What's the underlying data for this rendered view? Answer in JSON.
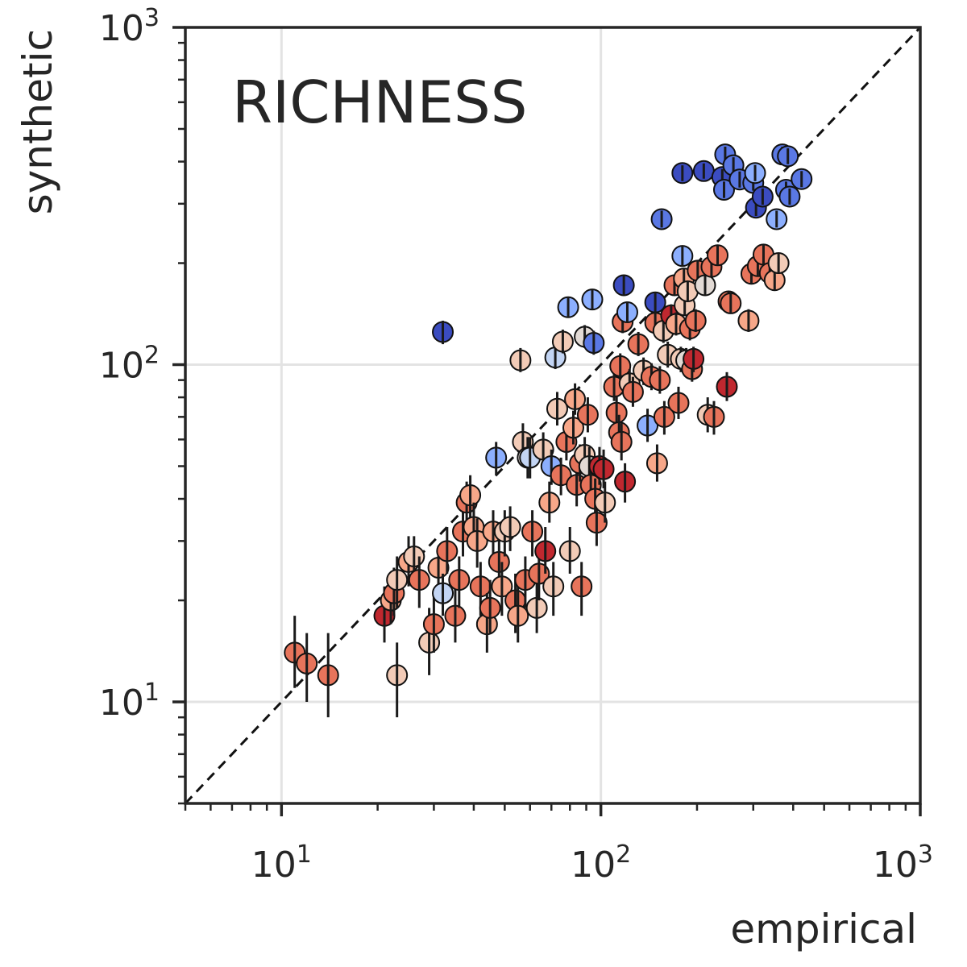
{
  "chart_data": {
    "type": "scatter",
    "title": "RICHNESS",
    "xlabel": "empirical",
    "ylabel": "synthetic",
    "xscale": "log",
    "yscale": "log",
    "xlim": [
      5,
      1000
    ],
    "ylim": [
      5,
      1000
    ],
    "grid": true,
    "legend": "none",
    "reference_line": "y = x (dashed)",
    "tick_labels": {
      "x": [
        {
          "base": "10",
          "exp": "1",
          "value": 10
        },
        {
          "base": "10",
          "exp": "2",
          "value": 100
        },
        {
          "base": "10",
          "exp": "3",
          "value": 1000
        }
      ],
      "y": [
        {
          "base": "10",
          "exp": "1",
          "value": 10
        },
        {
          "base": "10",
          "exp": "2",
          "value": 100
        },
        {
          "base": "10",
          "exp": "3",
          "value": 1000
        }
      ]
    },
    "colors": {
      "dark_blue": "#3b4cc0",
      "blue": "#5a78e4",
      "light_blue": "#8caffe",
      "pale_blue": "#c3d5f4",
      "neutral": "#e2dad5",
      "pale_red": "#f2cbb7",
      "light_red": "#f7a789",
      "red": "#e7745b",
      "dark_red": "#c0282f",
      "deep_red": "#b40426",
      "marker_edge": "#111111",
      "errorbar": "#1a1a1a"
    },
    "points": [
      {
        "x": 11.0,
        "y": 14,
        "lo": 11,
        "hi": 18,
        "c": "red"
      },
      {
        "x": 12.0,
        "y": 13,
        "lo": 10,
        "hi": 16,
        "c": "red"
      },
      {
        "x": 14.0,
        "y": 12,
        "lo": 9,
        "hi": 16,
        "c": "red"
      },
      {
        "x": 21.0,
        "y": 18,
        "lo": 15,
        "hi": 22,
        "c": "dark_red"
      },
      {
        "x": 22.0,
        "y": 20,
        "lo": 17,
        "hi": 24,
        "c": "light_red"
      },
      {
        "x": 22.5,
        "y": 21,
        "lo": 18,
        "hi": 25,
        "c": "red"
      },
      {
        "x": 23.0,
        "y": 23,
        "lo": 19,
        "hi": 27,
        "c": "pale_red"
      },
      {
        "x": 23.0,
        "y": 12,
        "lo": 9,
        "hi": 15,
        "c": "pale_red"
      },
      {
        "x": 25.0,
        "y": 26,
        "lo": 22,
        "hi": 31,
        "c": "light_red"
      },
      {
        "x": 26.0,
        "y": 27,
        "lo": 23,
        "hi": 31,
        "c": "pale_red"
      },
      {
        "x": 27.0,
        "y": 23,
        "lo": 19,
        "hi": 27,
        "c": "red"
      },
      {
        "x": 29.0,
        "y": 15,
        "lo": 12,
        "hi": 19,
        "c": "pale_red"
      },
      {
        "x": 30.0,
        "y": 17,
        "lo": 14,
        "hi": 21,
        "c": "red"
      },
      {
        "x": 31.0,
        "y": 25,
        "lo": 21,
        "hi": 29,
        "c": "light_red"
      },
      {
        "x": 32.0,
        "y": 21,
        "lo": 18,
        "hi": 24,
        "c": "pale_blue"
      },
      {
        "x": 32.0,
        "y": 125,
        "lo": 115,
        "hi": 135,
        "c": "dark_blue"
      },
      {
        "x": 33.0,
        "y": 28,
        "lo": 24,
        "hi": 33,
        "c": "red"
      },
      {
        "x": 35.0,
        "y": 18,
        "lo": 15,
        "hi": 22,
        "c": "red"
      },
      {
        "x": 36.0,
        "y": 23,
        "lo": 19,
        "hi": 27,
        "c": "red"
      },
      {
        "x": 37.0,
        "y": 32,
        "lo": 27,
        "hi": 37,
        "c": "red"
      },
      {
        "x": 38.0,
        "y": 39,
        "lo": 33,
        "hi": 45,
        "c": "red"
      },
      {
        "x": 39.0,
        "y": 41,
        "lo": 35,
        "hi": 47,
        "c": "light_red"
      },
      {
        "x": 40.0,
        "y": 33,
        "lo": 28,
        "hi": 39,
        "c": "light_red"
      },
      {
        "x": 41.0,
        "y": 30,
        "lo": 25,
        "hi": 35,
        "c": "light_red"
      },
      {
        "x": 42.0,
        "y": 22,
        "lo": 18,
        "hi": 26,
        "c": "red"
      },
      {
        "x": 44.0,
        "y": 17,
        "lo": 14,
        "hi": 21,
        "c": "light_red"
      },
      {
        "x": 45.0,
        "y": 19,
        "lo": 16,
        "hi": 23,
        "c": "red"
      },
      {
        "x": 46.0,
        "y": 32,
        "lo": 27,
        "hi": 37,
        "c": "light_red"
      },
      {
        "x": 47.0,
        "y": 53,
        "lo": 47,
        "hi": 59,
        "c": "light_blue"
      },
      {
        "x": 48.0,
        "y": 26,
        "lo": 22,
        "hi": 31,
        "c": "red"
      },
      {
        "x": 49.0,
        "y": 22,
        "lo": 18,
        "hi": 26,
        "c": "light_red"
      },
      {
        "x": 50.0,
        "y": 32,
        "lo": 27,
        "hi": 37,
        "c": "pale_red"
      },
      {
        "x": 52.0,
        "y": 33,
        "lo": 28,
        "hi": 38,
        "c": "pale_red"
      },
      {
        "x": 54.0,
        "y": 20,
        "lo": 16,
        "hi": 24,
        "c": "red"
      },
      {
        "x": 55.0,
        "y": 18,
        "lo": 15,
        "hi": 22,
        "c": "light_red"
      },
      {
        "x": 56.0,
        "y": 103,
        "lo": 95,
        "hi": 112,
        "c": "pale_red"
      },
      {
        "x": 57.0,
        "y": 59,
        "lo": 52,
        "hi": 67,
        "c": "pale_red"
      },
      {
        "x": 58.0,
        "y": 23,
        "lo": 19,
        "hi": 27,
        "c": "red"
      },
      {
        "x": 59.0,
        "y": 53,
        "lo": 46,
        "hi": 61,
        "c": "neutral"
      },
      {
        "x": 60.0,
        "y": 53,
        "lo": 46,
        "hi": 61,
        "c": "pale_blue"
      },
      {
        "x": 61.0,
        "y": 32,
        "lo": 27,
        "hi": 37,
        "c": "red"
      },
      {
        "x": 63.0,
        "y": 19,
        "lo": 16,
        "hi": 23,
        "c": "pale_red"
      },
      {
        "x": 64.0,
        "y": 24,
        "lo": 20,
        "hi": 28,
        "c": "red"
      },
      {
        "x": 66.0,
        "y": 56,
        "lo": 49,
        "hi": 63,
        "c": "pale_red"
      },
      {
        "x": 67.0,
        "y": 28,
        "lo": 24,
        "hi": 33,
        "c": "dark_red"
      },
      {
        "x": 69.0,
        "y": 39,
        "lo": 34,
        "hi": 45,
        "c": "light_red"
      },
      {
        "x": 70.0,
        "y": 50,
        "lo": 44,
        "hi": 56,
        "c": "light_blue"
      },
      {
        "x": 71.0,
        "y": 22,
        "lo": 18,
        "hi": 26,
        "c": "pale_red"
      },
      {
        "x": 72.0,
        "y": 105,
        "lo": 97,
        "hi": 114,
        "c": "pale_blue"
      },
      {
        "x": 73.0,
        "y": 74,
        "lo": 66,
        "hi": 83,
        "c": "pale_red"
      },
      {
        "x": 75.0,
        "y": 47,
        "lo": 41,
        "hi": 53,
        "c": "red"
      },
      {
        "x": 76.0,
        "y": 117,
        "lo": 108,
        "hi": 127,
        "c": "pale_red"
      },
      {
        "x": 78.0,
        "y": 59,
        "lo": 52,
        "hi": 67,
        "c": "red"
      },
      {
        "x": 79.0,
        "y": 148,
        "lo": 138,
        "hi": 159,
        "c": "light_blue"
      },
      {
        "x": 80.0,
        "y": 28,
        "lo": 24,
        "hi": 33,
        "c": "pale_red"
      },
      {
        "x": 82.0,
        "y": 65,
        "lo": 58,
        "hi": 73,
        "c": "light_red"
      },
      {
        "x": 83.0,
        "y": 79,
        "lo": 71,
        "hi": 88,
        "c": "light_red"
      },
      {
        "x": 84.0,
        "y": 44,
        "lo": 38,
        "hi": 50,
        "c": "red"
      },
      {
        "x": 86.0,
        "y": 51,
        "lo": 45,
        "hi": 58,
        "c": "red"
      },
      {
        "x": 87.0,
        "y": 22,
        "lo": 18,
        "hi": 26,
        "c": "red"
      },
      {
        "x": 89.0,
        "y": 121,
        "lo": 112,
        "hi": 131,
        "c": "neutral"
      },
      {
        "x": 89.0,
        "y": 54,
        "lo": 47,
        "hi": 61,
        "c": "pale_red"
      },
      {
        "x": 91.0,
        "y": 71,
        "lo": 63,
        "hi": 80,
        "c": "red"
      },
      {
        "x": 92.0,
        "y": 50,
        "lo": 44,
        "hi": 57,
        "c": "neutral"
      },
      {
        "x": 93.0,
        "y": 44,
        "lo": 38,
        "hi": 50,
        "c": "red"
      },
      {
        "x": 94.0,
        "y": 156,
        "lo": 146,
        "hi": 167,
        "c": "light_blue"
      },
      {
        "x": 95.0,
        "y": 116,
        "lo": 107,
        "hi": 126,
        "c": "blue"
      },
      {
        "x": 96.0,
        "y": 40,
        "lo": 34,
        "hi": 46,
        "c": "red"
      },
      {
        "x": 97.0,
        "y": 34,
        "lo": 29,
        "hi": 40,
        "c": "red"
      },
      {
        "x": 99.0,
        "y": 50,
        "lo": 44,
        "hi": 57,
        "c": "dark_red"
      },
      {
        "x": 102.0,
        "y": 49,
        "lo": 43,
        "hi": 56,
        "c": "dark_red"
      },
      {
        "x": 103.0,
        "y": 39,
        "lo": 34,
        "hi": 45,
        "c": "pale_red"
      },
      {
        "x": 110.0,
        "y": 86,
        "lo": 78,
        "hi": 95,
        "c": "red"
      },
      {
        "x": 112.0,
        "y": 72,
        "lo": 64,
        "hi": 81,
        "c": "red"
      },
      {
        "x": 114.0,
        "y": 63,
        "lo": 56,
        "hi": 71,
        "c": "red"
      },
      {
        "x": 115.0,
        "y": 99,
        "lo": 90,
        "hi": 108,
        "c": "red"
      },
      {
        "x": 116.0,
        "y": 59,
        "lo": 52,
        "hi": 67,
        "c": "red"
      },
      {
        "x": 117.0,
        "y": 134,
        "lo": 124,
        "hi": 145,
        "c": "red"
      },
      {
        "x": 118.0,
        "y": 172,
        "lo": 161,
        "hi": 184,
        "c": "dark_blue"
      },
      {
        "x": 119.0,
        "y": 45,
        "lo": 39,
        "hi": 51,
        "c": "dark_red"
      },
      {
        "x": 121.0,
        "y": 143,
        "lo": 133,
        "hi": 154,
        "c": "light_blue"
      },
      {
        "x": 123.0,
        "y": 88,
        "lo": 80,
        "hi": 97,
        "c": "pale_red"
      },
      {
        "x": 126.0,
        "y": 83,
        "lo": 75,
        "hi": 92,
        "c": "red"
      },
      {
        "x": 131.0,
        "y": 115,
        "lo": 106,
        "hi": 125,
        "c": "red"
      },
      {
        "x": 136.0,
        "y": 96,
        "lo": 87,
        "hi": 105,
        "c": "pale_red"
      },
      {
        "x": 140.0,
        "y": 66,
        "lo": 59,
        "hi": 74,
        "c": "light_blue"
      },
      {
        "x": 144.0,
        "y": 92,
        "lo": 84,
        "hi": 101,
        "c": "red"
      },
      {
        "x": 148.0,
        "y": 153,
        "lo": 143,
        "hi": 164,
        "c": "dark_blue"
      },
      {
        "x": 148.0,
        "y": 133,
        "lo": 123,
        "hi": 144,
        "c": "red"
      },
      {
        "x": 150.0,
        "y": 51,
        "lo": 45,
        "hi": 58,
        "c": "light_red"
      },
      {
        "x": 153.0,
        "y": 90,
        "lo": 82,
        "hi": 99,
        "c": "red"
      },
      {
        "x": 155.0,
        "y": 270,
        "lo": 255,
        "hi": 286,
        "c": "blue"
      },
      {
        "x": 157.0,
        "y": 126,
        "lo": 116,
        "hi": 136,
        "c": "pale_red"
      },
      {
        "x": 158.0,
        "y": 70,
        "lo": 62,
        "hi": 78,
        "c": "red"
      },
      {
        "x": 162.0,
        "y": 107,
        "lo": 98,
        "hi": 117,
        "c": "pale_red"
      },
      {
        "x": 166.0,
        "y": 140,
        "lo": 130,
        "hi": 151,
        "c": "dark_red"
      },
      {
        "x": 170.0,
        "y": 172,
        "lo": 161,
        "hi": 184,
        "c": "red"
      },
      {
        "x": 172.0,
        "y": 132,
        "lo": 122,
        "hi": 143,
        "c": "light_red"
      },
      {
        "x": 175.0,
        "y": 77,
        "lo": 69,
        "hi": 86,
        "c": "red"
      },
      {
        "x": 178.0,
        "y": 104,
        "lo": 95,
        "hi": 113,
        "c": "pale_red"
      },
      {
        "x": 180.0,
        "y": 370,
        "lo": 350,
        "hi": 390,
        "c": "dark_blue"
      },
      {
        "x": 180.0,
        "y": 210,
        "lo": 196,
        "hi": 225,
        "c": "light_blue"
      },
      {
        "x": 182.0,
        "y": 180,
        "lo": 168,
        "hi": 193,
        "c": "light_red"
      },
      {
        "x": 183.0,
        "y": 150,
        "lo": 140,
        "hi": 161,
        "c": "pale_red"
      },
      {
        "x": 185.0,
        "y": 103,
        "lo": 94,
        "hi": 112,
        "c": "neutral"
      },
      {
        "x": 187.0,
        "y": 165,
        "lo": 154,
        "hi": 177,
        "c": "pale_red"
      },
      {
        "x": 190.0,
        "y": 128,
        "lo": 118,
        "hi": 138,
        "c": "red"
      },
      {
        "x": 193.0,
        "y": 97,
        "lo": 89,
        "hi": 106,
        "c": "red"
      },
      {
        "x": 195.0,
        "y": 104,
        "lo": 95,
        "hi": 113,
        "c": "dark_red"
      },
      {
        "x": 198.0,
        "y": 135,
        "lo": 125,
        "hi": 146,
        "c": "red"
      },
      {
        "x": 201.0,
        "y": 190,
        "lo": 178,
        "hi": 203,
        "c": "red"
      },
      {
        "x": 210.0,
        "y": 375,
        "lo": 356,
        "hi": 395,
        "c": "dark_blue"
      },
      {
        "x": 212.0,
        "y": 172,
        "lo": 161,
        "hi": 184,
        "c": "neutral"
      },
      {
        "x": 216.0,
        "y": 71,
        "lo": 63,
        "hi": 80,
        "c": "pale_red"
      },
      {
        "x": 222.0,
        "y": 195,
        "lo": 182,
        "hi": 209,
        "c": "red"
      },
      {
        "x": 226.0,
        "y": 70,
        "lo": 62,
        "hi": 78,
        "c": "red"
      },
      {
        "x": 232.0,
        "y": 211,
        "lo": 197,
        "hi": 226,
        "c": "red"
      },
      {
        "x": 240.0,
        "y": 360,
        "lo": 341,
        "hi": 380,
        "c": "dark_blue"
      },
      {
        "x": 243.0,
        "y": 330,
        "lo": 312,
        "hi": 349,
        "c": "blue"
      },
      {
        "x": 245.0,
        "y": 420,
        "lo": 398,
        "hi": 443,
        "c": "blue"
      },
      {
        "x": 248.0,
        "y": 86,
        "lo": 78,
        "hi": 95,
        "c": "dark_red"
      },
      {
        "x": 251.0,
        "y": 154,
        "lo": 143,
        "hi": 165,
        "c": "red"
      },
      {
        "x": 255.0,
        "y": 152,
        "lo": 142,
        "hi": 163,
        "c": "red"
      },
      {
        "x": 260.0,
        "y": 390,
        "lo": 369,
        "hi": 412,
        "c": "blue"
      },
      {
        "x": 272.0,
        "y": 354,
        "lo": 335,
        "hi": 374,
        "c": "blue"
      },
      {
        "x": 290.0,
        "y": 135,
        "lo": 125,
        "hi": 146,
        "c": "light_red"
      },
      {
        "x": 296.0,
        "y": 186,
        "lo": 174,
        "hi": 199,
        "c": "red"
      },
      {
        "x": 300.0,
        "y": 346,
        "lo": 328,
        "hi": 365,
        "c": "blue"
      },
      {
        "x": 304.0,
        "y": 370,
        "lo": 350,
        "hi": 391,
        "c": "light_blue"
      },
      {
        "x": 306.0,
        "y": 292,
        "lo": 276,
        "hi": 309,
        "c": "dark_blue"
      },
      {
        "x": 310.0,
        "y": 196,
        "lo": 183,
        "hi": 210,
        "c": "red"
      },
      {
        "x": 321.0,
        "y": 315,
        "lo": 298,
        "hi": 333,
        "c": "dark_blue"
      },
      {
        "x": 323.0,
        "y": 212,
        "lo": 198,
        "hi": 227,
        "c": "red"
      },
      {
        "x": 338.0,
        "y": 187,
        "lo": 175,
        "hi": 200,
        "c": "red"
      },
      {
        "x": 350.0,
        "y": 178,
        "lo": 166,
        "hi": 191,
        "c": "light_red"
      },
      {
        "x": 355.0,
        "y": 270,
        "lo": 255,
        "hi": 286,
        "c": "light_blue"
      },
      {
        "x": 360.0,
        "y": 200,
        "lo": 187,
        "hi": 214,
        "c": "pale_red"
      },
      {
        "x": 370.0,
        "y": 420,
        "lo": 398,
        "hi": 443,
        "c": "blue"
      },
      {
        "x": 385.0,
        "y": 415,
        "lo": 393,
        "hi": 438,
        "c": "blue"
      },
      {
        "x": 380.0,
        "y": 330,
        "lo": 312,
        "hi": 349,
        "c": "blue"
      },
      {
        "x": 390.0,
        "y": 315,
        "lo": 298,
        "hi": 333,
        "c": "blue"
      },
      {
        "x": 425.0,
        "y": 355,
        "lo": 336,
        "hi": 375,
        "c": "blue"
      }
    ]
  }
}
